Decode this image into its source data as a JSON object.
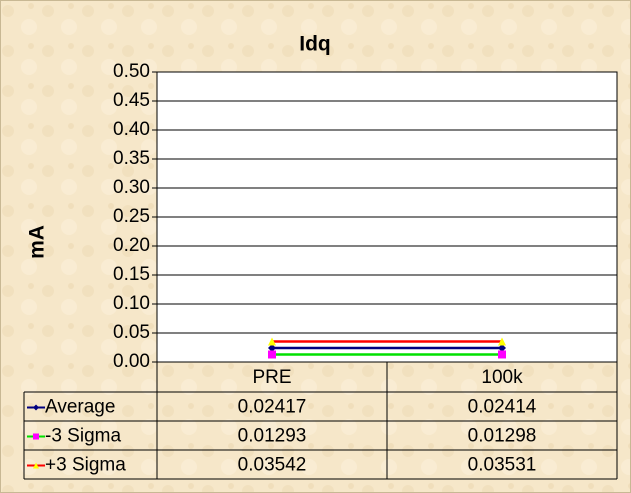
{
  "chart_data": {
    "type": "line",
    "title": "Idq",
    "y_label": "mA",
    "categories": [
      "PRE",
      "100k"
    ],
    "series": [
      {
        "name": "Average",
        "color": "#000080",
        "marker_color": "#000080",
        "marker": "diamond",
        "values": [
          0.02417,
          0.02414
        ]
      },
      {
        "name": "-3 Sigma",
        "color": "#00e000",
        "marker_color": "#ff00ff",
        "marker": "square",
        "values": [
          0.01293,
          0.01298
        ]
      },
      {
        "name": "+3 Sigma",
        "color": "#ff0000",
        "marker_color": "#ffff00",
        "marker": "triangle",
        "values": [
          0.03542,
          0.03531
        ]
      }
    ],
    "ylim": [
      0,
      0.5
    ],
    "yticks": [
      {
        "value": 0,
        "label": "0.00"
      },
      {
        "value": 0.05,
        "label": "0.05"
      },
      {
        "value": 0.1,
        "label": "0.10"
      },
      {
        "value": 0.15,
        "label": "0.15"
      },
      {
        "value": 0.2,
        "label": "0.20"
      },
      {
        "value": 0.25,
        "label": "0.25"
      },
      {
        "value": 0.3,
        "label": "0.30"
      },
      {
        "value": 0.35,
        "label": "0.35"
      },
      {
        "value": 0.4,
        "label": "0.40"
      },
      {
        "value": 0.45,
        "label": "0.45"
      },
      {
        "value": 0.5,
        "label": "0.50"
      }
    ],
    "grid": true,
    "data_table": true
  }
}
